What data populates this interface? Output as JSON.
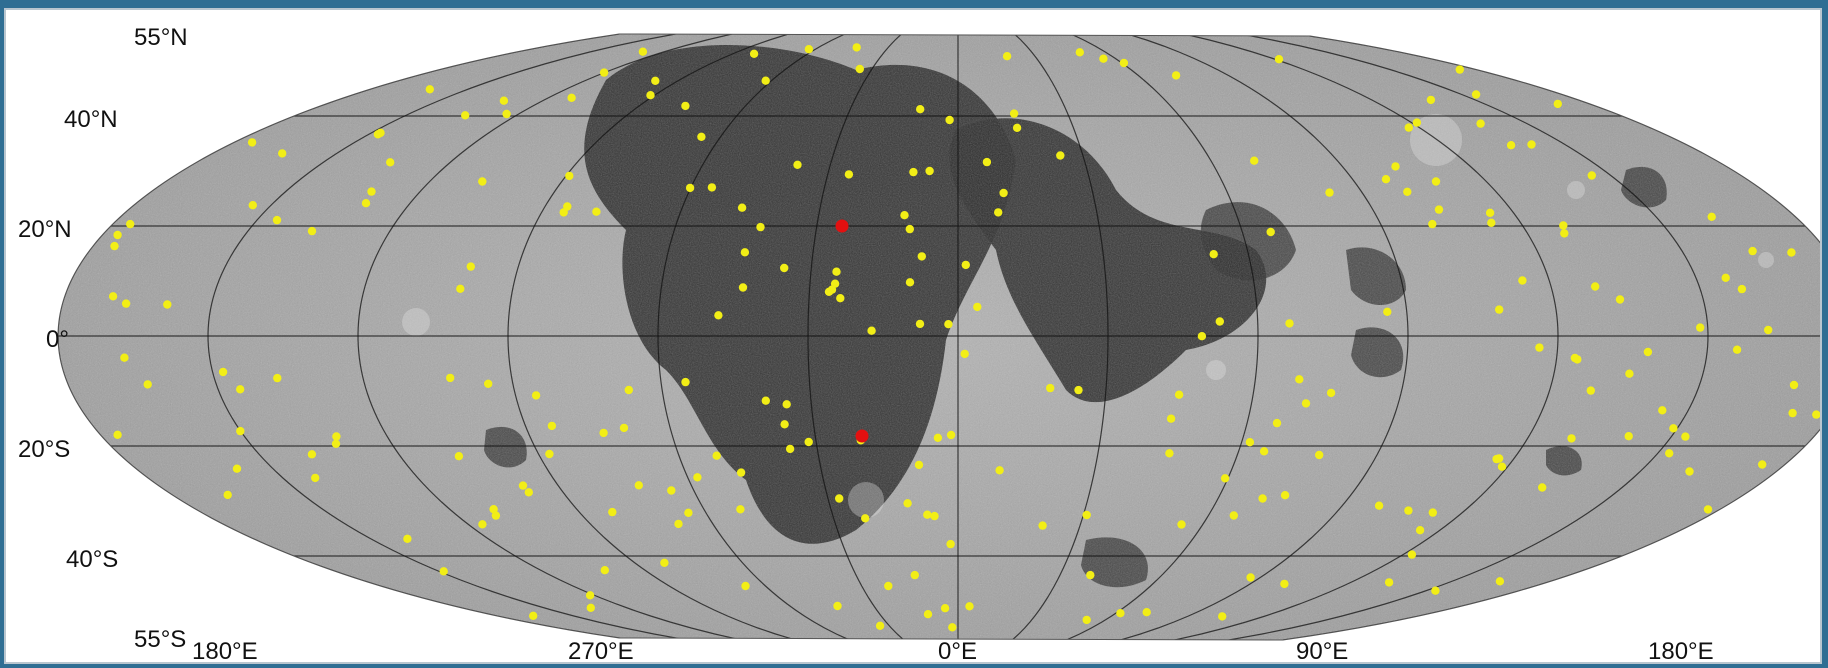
{
  "map": {
    "projection": "equal-area elliptical (lunar global mosaic)",
    "latitude_labels": [
      "55°N",
      "40°N",
      "20°N",
      "0°",
      "20°S",
      "40°S",
      "55°S"
    ],
    "longitude_labels": [
      "180°E",
      "270°E",
      "0°E",
      "90°E",
      "180°E"
    ],
    "latitude_values": [
      55,
      40,
      20,
      0,
      -20,
      -40,
      -55
    ],
    "longitude_values": [
      180,
      270,
      0,
      90,
      180
    ],
    "grid": true,
    "colors": {
      "background": "#2f6e93",
      "frame": "#ffffff",
      "highlands": "#9a9a9a",
      "maria": "#2a2a2a",
      "grid_lines": "#111111",
      "yellow_markers": "#f2ee16",
      "red_markers": "#e31010"
    },
    "marker_sets": [
      {
        "color": "yellow",
        "count": 245
      },
      {
        "color": "red",
        "count": 2
      }
    ]
  }
}
